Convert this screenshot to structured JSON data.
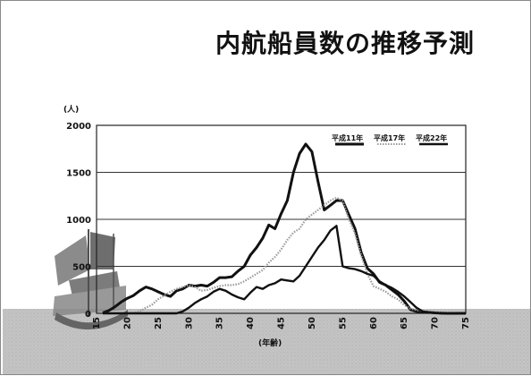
{
  "slide": {
    "title": "内航船員数の推移予測"
  },
  "chart_data": {
    "type": "line",
    "title": "内航船員数の推移予測",
    "xlabel": "(年齢)",
    "ylabel": "(人)",
    "xlim": [
      15,
      75
    ],
    "ylim": [
      0,
      2000
    ],
    "x_ticks": [
      15,
      20,
      25,
      30,
      35,
      40,
      45,
      50,
      55,
      60,
      65,
      70,
      75
    ],
    "y_ticks": [
      0,
      500,
      1000,
      1500,
      2000
    ],
    "grid": true,
    "legend_position": "top-right",
    "series": [
      {
        "name": "平成11年",
        "color": "#111111",
        "style": "thick-solid",
        "x": [
          16,
          17,
          18,
          19,
          20,
          21,
          22,
          23,
          24,
          25,
          26,
          27,
          28,
          29,
          30,
          31,
          32,
          33,
          34,
          35,
          36,
          37,
          38,
          39,
          40,
          41,
          42,
          43,
          44,
          45,
          46,
          47,
          48,
          49,
          50,
          51,
          52,
          53,
          54,
          55,
          56,
          57,
          58,
          59,
          60,
          61,
          62,
          63,
          64,
          65,
          66,
          67,
          68,
          69,
          70,
          71,
          72,
          73,
          74,
          75
        ],
        "values": [
          5,
          30,
          70,
          120,
          160,
          190,
          240,
          280,
          260,
          230,
          200,
          180,
          240,
          260,
          300,
          290,
          300,
          290,
          330,
          380,
          380,
          390,
          450,
          500,
          620,
          700,
          800,
          940,
          900,
          1060,
          1200,
          1500,
          1700,
          1800,
          1720,
          1400,
          1100,
          1150,
          1200,
          1200,
          1050,
          900,
          650,
          480,
          420,
          330,
          300,
          250,
          200,
          130,
          40,
          20,
          15,
          10,
          5,
          2,
          0,
          0,
          0,
          0
        ]
      },
      {
        "name": "平成17年",
        "color": "#9a9a9a",
        "style": "dotted",
        "x": [
          16,
          17,
          18,
          19,
          20,
          21,
          22,
          23,
          24,
          25,
          26,
          27,
          28,
          29,
          30,
          31,
          32,
          33,
          34,
          35,
          36,
          37,
          38,
          39,
          40,
          41,
          42,
          43,
          44,
          45,
          46,
          47,
          48,
          49,
          50,
          51,
          52,
          53,
          54,
          55,
          56,
          57,
          58,
          59,
          60,
          61,
          62,
          63,
          64,
          65,
          66,
          67,
          68,
          69,
          70,
          71,
          72,
          73,
          74,
          75
        ],
        "values": [
          0,
          0,
          0,
          0,
          0,
          5,
          20,
          60,
          90,
          150,
          190,
          230,
          260,
          280,
          300,
          280,
          240,
          250,
          270,
          290,
          300,
          300,
          310,
          340,
          380,
          420,
          460,
          540,
          600,
          680,
          780,
          860,
          900,
          1000,
          1050,
          1100,
          1150,
          1200,
          1230,
          1200,
          1000,
          850,
          620,
          420,
          290,
          260,
          230,
          180,
          150,
          90,
          50,
          35,
          25,
          20,
          15,
          10,
          5,
          2,
          0,
          0
        ]
      },
      {
        "name": "平成22年",
        "color": "#111111",
        "style": "solid",
        "x": [
          16,
          17,
          18,
          19,
          20,
          21,
          22,
          23,
          24,
          25,
          26,
          27,
          28,
          29,
          30,
          31,
          32,
          33,
          34,
          35,
          36,
          37,
          38,
          39,
          40,
          41,
          42,
          43,
          44,
          45,
          46,
          47,
          48,
          49,
          50,
          51,
          52,
          53,
          54,
          55,
          56,
          57,
          58,
          59,
          60,
          61,
          62,
          63,
          64,
          65,
          66,
          67,
          68,
          69,
          70,
          71,
          72,
          73,
          74,
          75
        ],
        "values": [
          0,
          0,
          0,
          0,
          0,
          0,
          0,
          0,
          0,
          0,
          0,
          0,
          0,
          20,
          60,
          110,
          150,
          180,
          230,
          260,
          240,
          200,
          170,
          150,
          220,
          280,
          260,
          300,
          320,
          360,
          350,
          340,
          400,
          500,
          600,
          700,
          780,
          880,
          930,
          500,
          480,
          470,
          450,
          420,
          400,
          340,
          300,
          270,
          230,
          180,
          120,
          60,
          20,
          10,
          5,
          0,
          0,
          0,
          0,
          0
        ]
      }
    ]
  }
}
